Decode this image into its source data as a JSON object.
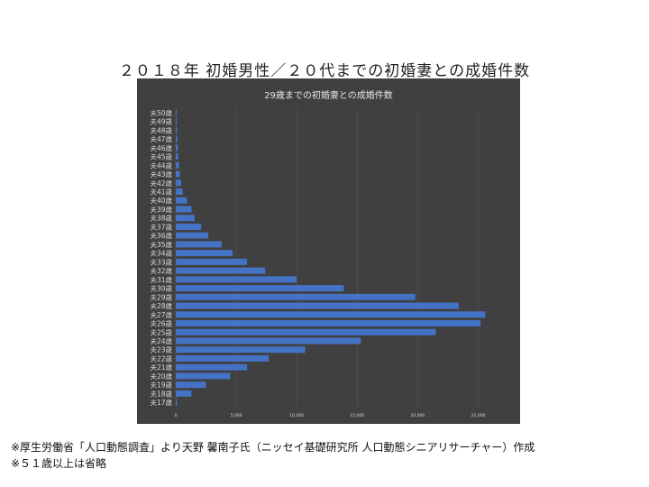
{
  "slide": {
    "title": "２０１８年 初婚男性／２０代までの初婚妻との成婚件数",
    "notes": [
      "※厚生労働省「人口動態調査」より天野 馨南子氏（ニッセイ基礎研究所 人口動態シニアリサーチャー）作成",
      "※５１歳以上は省略"
    ]
  },
  "colors": {
    "panel_bg": "#404040",
    "bar": "#4472c4",
    "grid": "#595959",
    "text": "#d9d9d9"
  },
  "chart_data": {
    "type": "bar",
    "orientation": "horizontal",
    "title": "29歳までの初婚妻との成婚件数",
    "categories": [
      "夫50歳",
      "夫49歳",
      "夫48歳",
      "夫47歳",
      "夫46歳",
      "夫45歳",
      "夫44歳",
      "夫43歳",
      "夫42歳",
      "夫41歳",
      "夫40歳",
      "夫39歳",
      "夫38歳",
      "夫37歳",
      "夫36歳",
      "夫35歳",
      "夫34歳",
      "夫33歳",
      "夫32歳",
      "夫31歳",
      "夫30歳",
      "夫29歳",
      "夫28歳",
      "夫27歳",
      "夫26歳",
      "夫25歳",
      "夫24歳",
      "夫23歳",
      "夫22歳",
      "夫21歳",
      "夫20歳",
      "夫19歳",
      "夫18歳",
      "夫17歳"
    ],
    "values": [
      60,
      80,
      100,
      130,
      170,
      210,
      270,
      350,
      450,
      580,
      920,
      1300,
      1550,
      2100,
      2700,
      3800,
      4700,
      5900,
      7400,
      10000,
      13900,
      19800,
      23400,
      25600,
      25200,
      21500,
      15300,
      10700,
      7700,
      5900,
      4500,
      2500,
      1300,
      100
    ],
    "xticks": [
      "0",
      "5,000",
      "10,000",
      "15,000",
      "20,000",
      "25,000"
    ],
    "xlim": [
      0,
      27500
    ],
    "grid": true,
    "legend": "none"
  }
}
